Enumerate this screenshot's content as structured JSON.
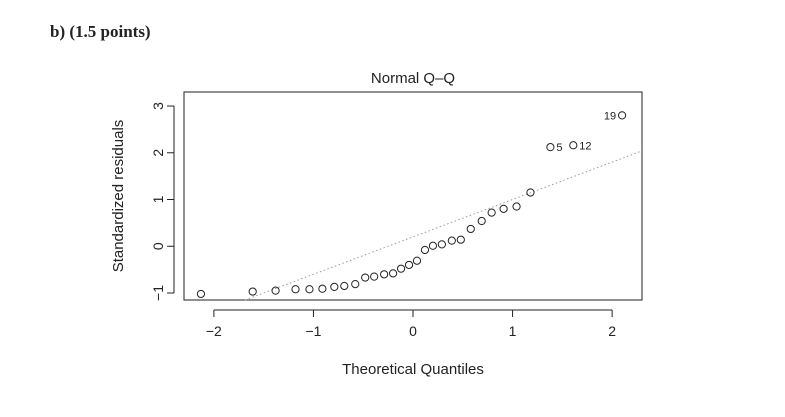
{
  "heading": "b) (1.5 points)",
  "chart_data": {
    "type": "scatter",
    "title": "Normal Q–Q",
    "xlabel": "Theoretical Quantiles",
    "ylabel": "Standardized residuals",
    "xlim": [
      -2.3,
      2.3
    ],
    "ylim": [
      -1.15,
      3.3
    ],
    "x_ticks": [
      -2,
      -1,
      0,
      1,
      2
    ],
    "x_tick_labels": [
      "−2",
      "−1",
      "0",
      "1",
      "2"
    ],
    "y_ticks": [
      -1,
      0,
      1,
      2,
      3
    ],
    "y_tick_labels": [
      "−1",
      "0",
      "1",
      "2",
      "3"
    ],
    "reference_line": {
      "style": "dotted",
      "color": "#999999",
      "intercept": 0.2,
      "slope": 0.8
    },
    "points": [
      {
        "x": -2.13,
        "y": -1.02
      },
      {
        "x": -1.61,
        "y": -0.97
      },
      {
        "x": -1.38,
        "y": -0.95
      },
      {
        "x": -1.18,
        "y": -0.92
      },
      {
        "x": -1.04,
        "y": -0.92
      },
      {
        "x": -0.91,
        "y": -0.91
      },
      {
        "x": -0.79,
        "y": -0.87
      },
      {
        "x": -0.69,
        "y": -0.85
      },
      {
        "x": -0.58,
        "y": -0.81
      },
      {
        "x": -0.48,
        "y": -0.67
      },
      {
        "x": -0.39,
        "y": -0.65
      },
      {
        "x": -0.29,
        "y": -0.6
      },
      {
        "x": -0.2,
        "y": -0.58
      },
      {
        "x": -0.12,
        "y": -0.48
      },
      {
        "x": -0.04,
        "y": -0.4
      },
      {
        "x": 0.04,
        "y": -0.31
      },
      {
        "x": 0.12,
        "y": -0.08
      },
      {
        "x": 0.2,
        "y": 0.01
      },
      {
        "x": 0.29,
        "y": 0.04
      },
      {
        "x": 0.39,
        "y": 0.12
      },
      {
        "x": 0.48,
        "y": 0.14
      },
      {
        "x": 0.58,
        "y": 0.37
      },
      {
        "x": 0.69,
        "y": 0.54
      },
      {
        "x": 0.79,
        "y": 0.72
      },
      {
        "x": 0.91,
        "y": 0.8
      },
      {
        "x": 1.04,
        "y": 0.85
      },
      {
        "x": 1.18,
        "y": 1.15
      },
      {
        "x": 1.38,
        "y": 2.12,
        "label": "5"
      },
      {
        "x": 1.61,
        "y": 2.16,
        "label": "12"
      },
      {
        "x": 2.1,
        "y": 2.8,
        "label": "19"
      }
    ]
  }
}
